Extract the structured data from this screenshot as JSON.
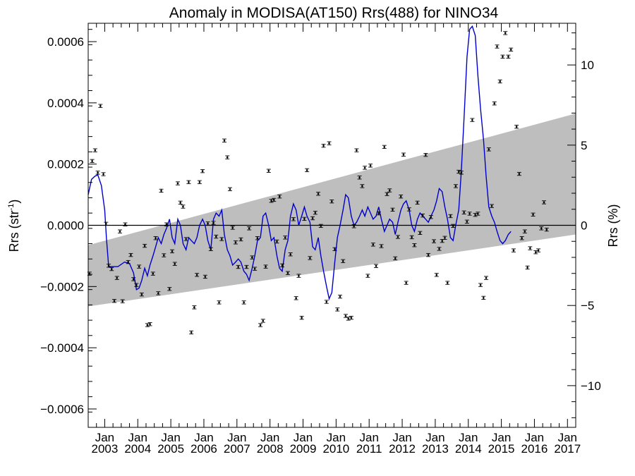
{
  "chart_data": {
    "type": "line",
    "title": "Anomaly in MODISA(AT150) Rrs(488) for NINO34",
    "ylabel_left": "Rrs (str",
    "ylabel_left_sup": "-1",
    "ylabel_left_close": ")",
    "ylabel_right": "Rrs (%)",
    "xlim": [
      2002.5,
      2017.25
    ],
    "ylim_left": [
      -0.00066,
      0.00066
    ],
    "ylim_right": [
      -12.6,
      12.6
    ],
    "left_ticks": [
      {
        "value": 0.0006,
        "label": "0.0006"
      },
      {
        "value": 0.0004,
        "label": "0.0004"
      },
      {
        "value": 0.0002,
        "label": "0.0002"
      },
      {
        "value": 0.0,
        "label": "0.0000"
      },
      {
        "value": -0.0002,
        "label": "−0.0002"
      },
      {
        "value": -0.0004,
        "label": "−0.0004"
      },
      {
        "value": -0.0006,
        "label": "−0.0006"
      }
    ],
    "right_ticks": [
      {
        "value": 10,
        "label": "10"
      },
      {
        "value": 5,
        "label": "5"
      },
      {
        "value": 0,
        "label": "0"
      },
      {
        "value": -5,
        "label": "−5"
      },
      {
        "value": -10,
        "label": "−10"
      }
    ],
    "x_month_label": "Jan",
    "x_years": [
      "2003",
      "2004",
      "2005",
      "2006",
      "2007",
      "2008",
      "2009",
      "2010",
      "2011",
      "2012",
      "2013",
      "2014",
      "2015",
      "2016",
      "2017"
    ],
    "band": {
      "start_x": 2002.5,
      "end_x": 2017.25,
      "upper": [
        -6.5e-05,
        0.000365
      ],
      "lower": [
        -0.000265,
        -3e-05
      ]
    },
    "zero_line": 0,
    "line_color": "#0000cc",
    "band_color": "#bebebe",
    "monthly_points": [
      {
        "x": 2002.54,
        "y": -0.000158
      },
      {
        "x": 2002.62,
        "y": 0.00021
      },
      {
        "x": 2002.71,
        "y": 0.000245
      },
      {
        "x": 2002.79,
        "y": 0.000172
      },
      {
        "x": 2002.87,
        "y": 0.00039
      },
      {
        "x": 2002.96,
        "y": 0.000167
      },
      {
        "x": 2003.04,
        "y": 5e-06
      },
      {
        "x": 2003.12,
        "y": -0.000132
      },
      {
        "x": 2003.21,
        "y": -0.000143
      },
      {
        "x": 2003.29,
        "y": -0.000247
      },
      {
        "x": 2003.37,
        "y": -0.000172
      },
      {
        "x": 2003.46,
        "y": -2e-05
      },
      {
        "x": 2003.54,
        "y": -0.000248
      },
      {
        "x": 2003.62,
        "y": 3e-06
      },
      {
        "x": 2003.71,
        "y": -0.00012
      },
      {
        "x": 2003.79,
        "y": -9.7e-05
      },
      {
        "x": 2003.87,
        "y": -0.000176
      },
      {
        "x": 2003.96,
        "y": -0.000195
      },
      {
        "x": 2004.04,
        "y": -0.000135
      },
      {
        "x": 2004.12,
        "y": -0.000226
      },
      {
        "x": 2004.21,
        "y": -6.7e-05
      },
      {
        "x": 2004.29,
        "y": -0.000326
      },
      {
        "x": 2004.37,
        "y": -0.000323
      },
      {
        "x": 2004.46,
        "y": -0.000158
      },
      {
        "x": 2004.54,
        "y": -4.2e-05
      },
      {
        "x": 2004.62,
        "y": -0.000222
      },
      {
        "x": 2004.71,
        "y": 0.000113
      },
      {
        "x": 2004.79,
        "y": -9.8e-05
      },
      {
        "x": 2004.87,
        "y": 3e-06
      },
      {
        "x": 2004.96,
        "y": -0.000208
      },
      {
        "x": 2005.04,
        "y": -8.5e-05
      },
      {
        "x": 2005.12,
        "y": -0.000126
      },
      {
        "x": 2005.21,
        "y": 0.000137
      },
      {
        "x": 2005.29,
        "y": 7.4e-05
      },
      {
        "x": 2005.37,
        "y": 6.1e-05
      },
      {
        "x": 2005.46,
        "y": -4.5e-05
      },
      {
        "x": 2005.54,
        "y": 0.000141
      },
      {
        "x": 2005.62,
        "y": -0.00035
      },
      {
        "x": 2005.71,
        "y": -0.000268
      },
      {
        "x": 2005.79,
        "y": -0.000162
      },
      {
        "x": 2005.87,
        "y": 0.000141
      },
      {
        "x": 2005.96,
        "y": 0.000177
      },
      {
        "x": 2006.04,
        "y": -0.000168
      },
      {
        "x": 2006.12,
        "y": 6e-06
      },
      {
        "x": 2006.21,
        "y": -7.8e-05
      },
      {
        "x": 2006.29,
        "y": 8e-06
      },
      {
        "x": 2006.37,
        "y": -3.7e-05
      },
      {
        "x": 2006.46,
        "y": -0.000252
      },
      {
        "x": 2006.54,
        "y": -4.5e-05
      },
      {
        "x": 2006.62,
        "y": 0.000277
      },
      {
        "x": 2006.71,
        "y": 0.000222
      },
      {
        "x": 2006.79,
        "y": 0.000118
      },
      {
        "x": 2006.87,
        "y": -8e-06
      },
      {
        "x": 2006.96,
        "y": -5.6e-05
      },
      {
        "x": 2007.04,
        "y": -0.000136
      },
      {
        "x": 2007.12,
        "y": -4.6e-05
      },
      {
        "x": 2007.21,
        "y": -0.000252
      },
      {
        "x": 2007.29,
        "y": -0.000136
      },
      {
        "x": 2007.37,
        "y": -1e-05
      },
      {
        "x": 2007.46,
        "y": -0.000105
      },
      {
        "x": 2007.54,
        "y": -0.000142
      },
      {
        "x": 2007.62,
        "y": -4.2e-05
      },
      {
        "x": 2007.71,
        "y": -0.000326
      },
      {
        "x": 2007.79,
        "y": -0.000312
      },
      {
        "x": 2007.87,
        "y": -0.000135
      },
      {
        "x": 2007.96,
        "y": 0.000178
      },
      {
        "x": 2008.04,
        "y": 8e-05
      },
      {
        "x": 2008.12,
        "y": 8.3e-05
      },
      {
        "x": 2008.21,
        "y": -5.3e-05
      },
      {
        "x": 2008.29,
        "y": 9.4e-05
      },
      {
        "x": 2008.37,
        "y": -0.000131
      },
      {
        "x": 2008.46,
        "y": -4e-05
      },
      {
        "x": 2008.54,
        "y": -0.000156
      },
      {
        "x": 2008.62,
        "y": -9.5e-05
      },
      {
        "x": 2008.71,
        "y": 2e-05
      },
      {
        "x": 2008.79,
        "y": -0.000238
      },
      {
        "x": 2008.87,
        "y": -0.000165
      },
      {
        "x": 2008.96,
        "y": -0.000302
      },
      {
        "x": 2009.04,
        "y": 2.1e-05
      },
      {
        "x": 2009.12,
        "y": 0.00018
      },
      {
        "x": 2009.21,
        "y": -0.000107
      },
      {
        "x": 2009.29,
        "y": 2.3e-05
      },
      {
        "x": 2009.37,
        "y": 4.1e-05
      },
      {
        "x": 2009.46,
        "y": 0.000103
      },
      {
        "x": 2009.54,
        "y": -2e-06
      },
      {
        "x": 2009.62,
        "y": 0.00026
      },
      {
        "x": 2009.71,
        "y": -0.00025
      },
      {
        "x": 2009.79,
        "y": 0.000268
      },
      {
        "x": 2009.87,
        "y": 7.8e-05
      },
      {
        "x": 2009.96,
        "y": -7.8e-05
      },
      {
        "x": 2010.04,
        "y": -0.000275
      },
      {
        "x": 2010.12,
        "y": -0.000233
      },
      {
        "x": 2010.21,
        "y": -0.000117
      },
      {
        "x": 2010.29,
        "y": -0.000296
      },
      {
        "x": 2010.37,
        "y": -0.000305
      },
      {
        "x": 2010.46,
        "y": -0.000302
      },
      {
        "x": 2010.54,
        "y": -3e-06
      },
      {
        "x": 2010.62,
        "y": 0.000245
      },
      {
        "x": 2010.71,
        "y": 0.000156
      },
      {
        "x": 2010.79,
        "y": 0.000128
      },
      {
        "x": 2010.87,
        "y": 0.000188
      },
      {
        "x": 2010.96,
        "y": -0.000165
      },
      {
        "x": 2011.04,
        "y": 0.000195
      },
      {
        "x": 2011.12,
        "y": -6.3e-05
      },
      {
        "x": 2011.21,
        "y": -0.000133
      },
      {
        "x": 2011.29,
        "y": 3.9e-05
      },
      {
        "x": 2011.37,
        "y": -6.8e-05
      },
      {
        "x": 2011.46,
        "y": 0.000256
      },
      {
        "x": 2011.54,
        "y": 0.000102
      },
      {
        "x": 2011.62,
        "y": 0.000114
      },
      {
        "x": 2011.71,
        "y": 5.1e-05
      },
      {
        "x": 2011.79,
        "y": -0.000108
      },
      {
        "x": 2011.87,
        "y": -3.8e-05
      },
      {
        "x": 2011.96,
        "y": 9.4e-05
      },
      {
        "x": 2012.04,
        "y": 0.000231
      },
      {
        "x": 2012.12,
        "y": -0.000188
      },
      {
        "x": 2012.21,
        "y": 5.2e-05
      },
      {
        "x": 2012.29,
        "y": -3.9e-05
      },
      {
        "x": 2012.37,
        "y": -6.5e-05
      },
      {
        "x": 2012.46,
        "y": 7.4e-05
      },
      {
        "x": 2012.54,
        "y": -2.5e-05
      },
      {
        "x": 2012.62,
        "y": 3.2e-05
      },
      {
        "x": 2012.71,
        "y": 0.00023
      },
      {
        "x": 2012.79,
        "y": -9.7e-05
      },
      {
        "x": 2012.87,
        "y": 2.7e-05
      },
      {
        "x": 2012.96,
        "y": -5.2e-05
      },
      {
        "x": 2013.04,
        "y": -0.000162
      },
      {
        "x": 2013.12,
        "y": -7.7e-05
      },
      {
        "x": 2013.21,
        "y": -5.1e-05
      },
      {
        "x": 2013.29,
        "y": -4.1e-05
      },
      {
        "x": 2013.37,
        "y": -0.000188
      },
      {
        "x": 2013.46,
        "y": 3e-05
      },
      {
        "x": 2013.54,
        "y": -2e-06
      },
      {
        "x": 2013.62,
        "y": 0.000128
      },
      {
        "x": 2013.71,
        "y": 0.000175
      },
      {
        "x": 2013.79,
        "y": 0.000172
      },
      {
        "x": 2013.87,
        "y": 4.2e-05
      },
      {
        "x": 2013.96,
        "y": 1.2e-05
      },
      {
        "x": 2014.04,
        "y": 3.8e-05
      },
      {
        "x": 2014.12,
        "y": 0.000344
      },
      {
        "x": 2014.21,
        "y": 3.4e-05
      },
      {
        "x": 2014.29,
        "y": 3.8e-05
      },
      {
        "x": 2014.37,
        "y": -0.000195
      },
      {
        "x": 2014.46,
        "y": -0.000237
      },
      {
        "x": 2014.54,
        "y": -0.000172
      },
      {
        "x": 2014.62,
        "y": 0.000248
      },
      {
        "x": 2014.71,
        "y": 6.3e-05
      },
      {
        "x": 2014.79,
        "y": 0.000398
      },
      {
        "x": 2014.87,
        "y": 0.000584
      },
      {
        "x": 2014.96,
        "y": 0.00047
      },
      {
        "x": 2015.04,
        "y": 0.000551
      },
      {
        "x": 2015.12,
        "y": 0.000628
      },
      {
        "x": 2015.21,
        "y": 0.000551
      },
      {
        "x": 2015.29,
        "y": 0.000574
      },
      {
        "x": 2015.37,
        "y": -8.2e-05
      },
      {
        "x": 2015.46,
        "y": 0.000322
      },
      {
        "x": 2015.54,
        "y": 0.000168
      },
      {
        "x": 2015.62,
        "y": -4.2e-05
      },
      {
        "x": 2015.71,
        "y": -2e-05
      },
      {
        "x": 2015.79,
        "y": -0.000138
      },
      {
        "x": 2015.87,
        "y": -7.5e-05
      },
      {
        "x": 2015.96,
        "y": 3.5e-05
      },
      {
        "x": 2016.04,
        "y": -8.8e-05
      },
      {
        "x": 2016.12,
        "y": -8.2e-05
      },
      {
        "x": 2016.21,
        "y": -1e-05
      },
      {
        "x": 2016.29,
        "y": 7.5e-05
      },
      {
        "x": 2016.37,
        "y": -1.4e-05
      }
    ],
    "anomaly_line": [
      [
        2002.5,
        0.0001
      ],
      [
        2002.6,
        0.00015
      ],
      [
        2002.7,
        0.00016
      ],
      [
        2002.79,
        0.000165
      ],
      [
        2002.9,
        0.00013
      ],
      [
        2003.0,
        5e-05
      ],
      [
        2003.05,
        -4e-05
      ],
      [
        2003.12,
        -0.000135
      ],
      [
        2003.25,
        -0.000135
      ],
      [
        2003.4,
        -0.000135
      ],
      [
        2003.6,
        -0.00012
      ],
      [
        2003.75,
        -0.000125
      ],
      [
        2003.87,
        -0.000155
      ],
      [
        2003.96,
        -0.00021
      ],
      [
        2004.04,
        -0.000205
      ],
      [
        2004.12,
        -0.00018
      ],
      [
        2004.21,
        -0.00014
      ],
      [
        2004.29,
        -0.000165
      ],
      [
        2004.37,
        -0.00013
      ],
      [
        2004.46,
        -0.0001
      ],
      [
        2004.54,
        -7e-05
      ],
      [
        2004.62,
        -4e-05
      ],
      [
        2004.71,
        -6e-05
      ],
      [
        2004.79,
        -3e-05
      ],
      [
        2004.87,
        -1e-05
      ],
      [
        2004.96,
        2e-05
      ],
      [
        2005.04,
        -4e-05
      ],
      [
        2005.12,
        -6e-05
      ],
      [
        2005.21,
        2e-05
      ],
      [
        2005.29,
        0.0
      ],
      [
        2005.37,
        -6e-05
      ],
      [
        2005.46,
        -8e-05
      ],
      [
        2005.54,
        -4e-05
      ],
      [
        2005.62,
        -5e-05
      ],
      [
        2005.71,
        -6e-05
      ],
      [
        2005.79,
        -4e-05
      ],
      [
        2005.87,
        0.0
      ],
      [
        2005.96,
        2e-05
      ],
      [
        2006.04,
        0.0
      ],
      [
        2006.12,
        -5e-05
      ],
      [
        2006.21,
        -8e-05
      ],
      [
        2006.29,
        2e-05
      ],
      [
        2006.37,
        4e-05
      ],
      [
        2006.46,
        3e-05
      ],
      [
        2006.54,
        5e-05
      ],
      [
        2006.62,
        -3e-05
      ],
      [
        2006.71,
        -8e-05
      ],
      [
        2006.79,
        -0.0001
      ],
      [
        2006.87,
        -0.00013
      ],
      [
        2006.96,
        -0.00012
      ],
      [
        2007.04,
        -0.00011
      ],
      [
        2007.12,
        -0.00012
      ],
      [
        2007.21,
        -0.00015
      ],
      [
        2007.29,
        -0.00016
      ],
      [
        2007.37,
        -0.00018
      ],
      [
        2007.46,
        -0.00014
      ],
      [
        2007.54,
        -0.0001
      ],
      [
        2007.62,
        -5e-05
      ],
      [
        2007.71,
        -4e-05
      ],
      [
        2007.79,
        3e-05
      ],
      [
        2007.87,
        4e-05
      ],
      [
        2007.96,
        0.0
      ],
      [
        2008.04,
        -5e-05
      ],
      [
        2008.12,
        -4e-05
      ],
      [
        2008.21,
        -0.0001
      ],
      [
        2008.29,
        -0.00014
      ],
      [
        2008.37,
        -0.00015
      ],
      [
        2008.46,
        -8e-05
      ],
      [
        2008.54,
        -5e-05
      ],
      [
        2008.62,
        3e-05
      ],
      [
        2008.71,
        7e-05
      ],
      [
        2008.79,
        5e-05
      ],
      [
        2008.87,
        0.0
      ],
      [
        2008.96,
        3e-05
      ],
      [
        2009.04,
        6e-05
      ],
      [
        2009.12,
        3e-05
      ],
      [
        2009.21,
        1e-05
      ],
      [
        2009.29,
        -7e-05
      ],
      [
        2009.37,
        -8e-05
      ],
      [
        2009.46,
        -4e-05
      ],
      [
        2009.54,
        -0.0001
      ],
      [
        2009.62,
        -0.00015
      ],
      [
        2009.71,
        -0.0002
      ],
      [
        2009.79,
        -0.00024
      ],
      [
        2009.87,
        -0.00022
      ],
      [
        2009.96,
        -0.00012
      ],
      [
        2010.04,
        -4e-05
      ],
      [
        2010.12,
        0.0
      ],
      [
        2010.21,
        5e-05
      ],
      [
        2010.29,
        0.0001
      ],
      [
        2010.37,
        9e-05
      ],
      [
        2010.46,
        3e-05
      ],
      [
        2010.54,
        0.0
      ],
      [
        2010.62,
        1e-05
      ],
      [
        2010.71,
        3e-05
      ],
      [
        2010.79,
        5e-05
      ],
      [
        2010.87,
        3e-05
      ],
      [
        2010.96,
        6e-05
      ],
      [
        2011.04,
        4e-05
      ],
      [
        2011.12,
        2e-05
      ],
      [
        2011.21,
        3e-05
      ],
      [
        2011.29,
        6e-05
      ],
      [
        2011.37,
        2e-05
      ],
      [
        2011.46,
        -2e-05
      ],
      [
        2011.54,
        0.0
      ],
      [
        2011.62,
        2e-05
      ],
      [
        2011.71,
        1e-05
      ],
      [
        2011.79,
        -3e-05
      ],
      [
        2011.87,
        1e-05
      ],
      [
        2011.96,
        5e-05
      ],
      [
        2012.04,
        7e-05
      ],
      [
        2012.12,
        8e-05
      ],
      [
        2012.21,
        5e-05
      ],
      [
        2012.29,
        0.0
      ],
      [
        2012.37,
        -2e-05
      ],
      [
        2012.46,
        2e-05
      ],
      [
        2012.54,
        4e-05
      ],
      [
        2012.62,
        3e-05
      ],
      [
        2012.71,
        2e-05
      ],
      [
        2012.79,
        1e-05
      ],
      [
        2012.87,
        3e-05
      ],
      [
        2012.96,
        5e-05
      ],
      [
        2013.04,
        8e-05
      ],
      [
        2013.12,
        0.00012
      ],
      [
        2013.21,
        0.00011
      ],
      [
        2013.29,
        6e-05
      ],
      [
        2013.37,
        2e-05
      ],
      [
        2013.46,
        -4e-05
      ],
      [
        2013.54,
        -5e-05
      ],
      [
        2013.62,
        0.0
      ],
      [
        2013.71,
        5e-05
      ],
      [
        2013.79,
        0.00018
      ],
      [
        2013.87,
        0.00035
      ],
      [
        2013.96,
        0.00055
      ],
      [
        2014.04,
        0.00064
      ],
      [
        2014.12,
        0.00065
      ],
      [
        2014.21,
        0.00062
      ],
      [
        2014.29,
        0.00049
      ],
      [
        2014.37,
        0.00038
      ],
      [
        2014.46,
        0.00028
      ],
      [
        2014.54,
        0.00016
      ],
      [
        2014.62,
        6e-05
      ],
      [
        2014.71,
        3e-05
      ],
      [
        2014.79,
        1e-05
      ],
      [
        2014.87,
        -2e-05
      ],
      [
        2014.96,
        -5e-05
      ],
      [
        2015.04,
        -6e-05
      ],
      [
        2015.12,
        -5e-05
      ],
      [
        2015.21,
        -3e-05
      ],
      [
        2015.29,
        -2e-05
      ]
    ]
  }
}
